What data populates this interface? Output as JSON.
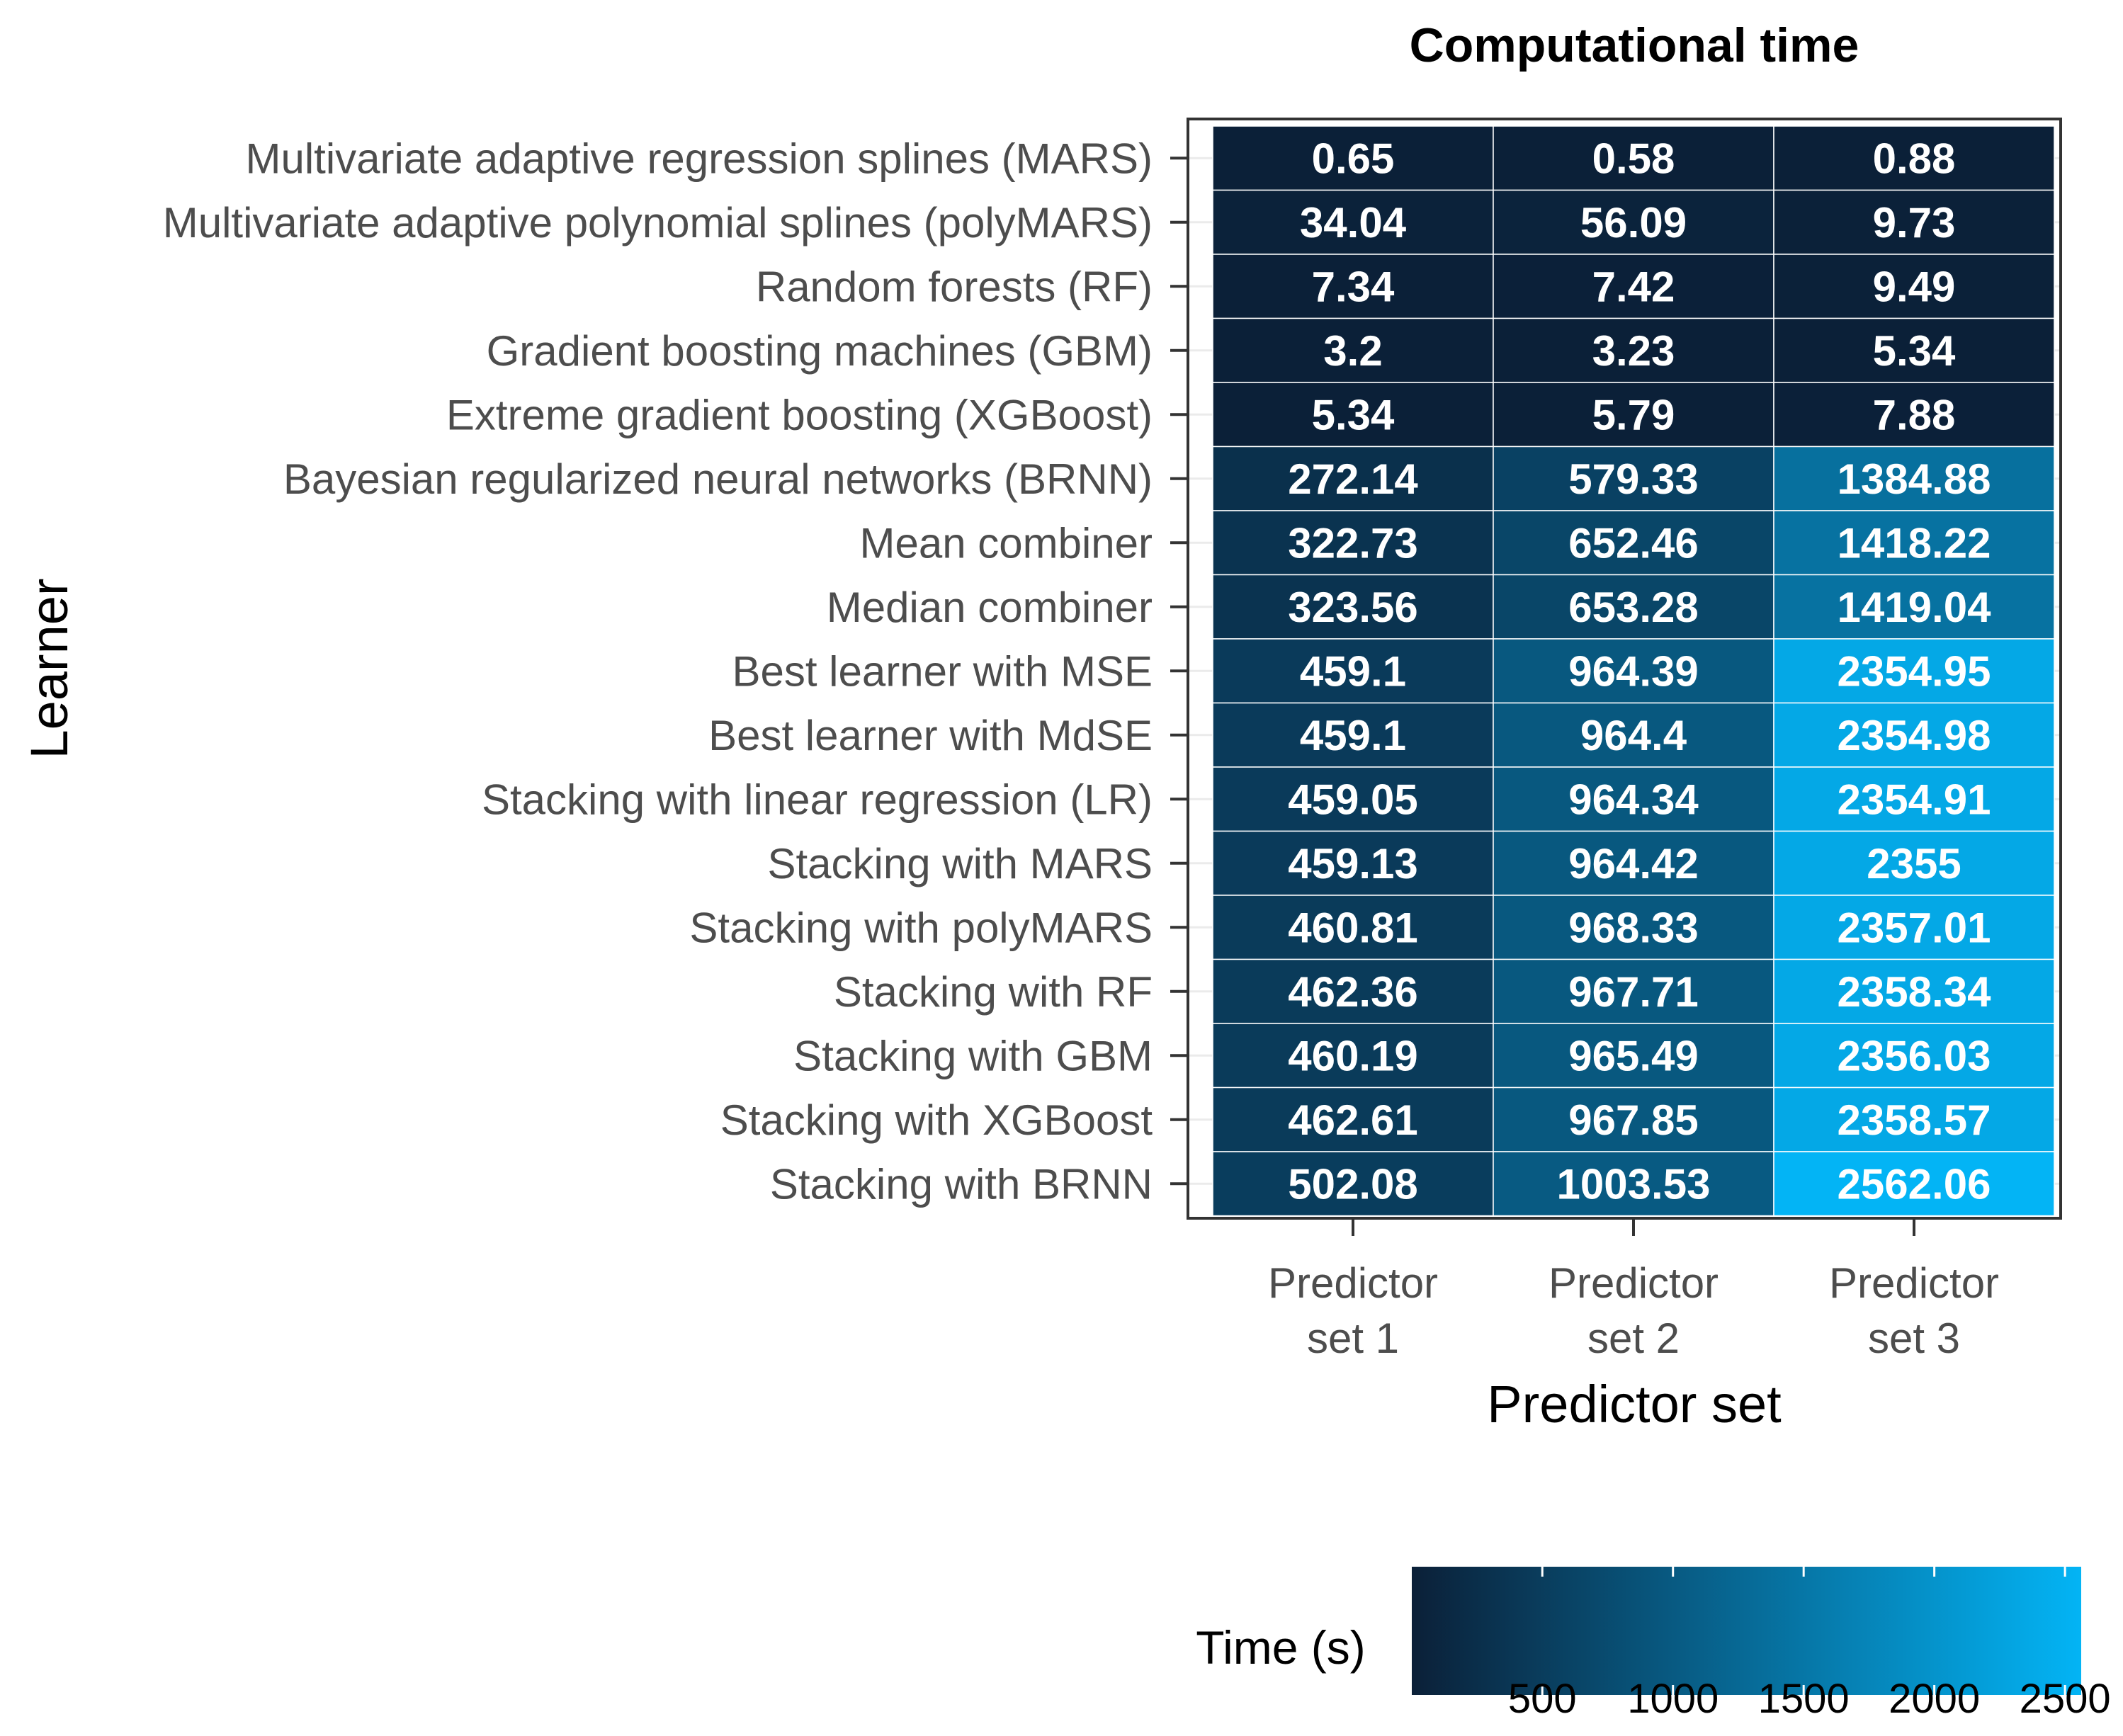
{
  "chart_data": {
    "type": "heatmap",
    "title": "Computational time",
    "xlabel": "Predictor set",
    "ylabel": "Learner",
    "x_categories": [
      [
        "Predictor",
        "set 1"
      ],
      [
        "Predictor",
        "set 2"
      ],
      [
        "Predictor",
        "set 3"
      ]
    ],
    "y_categories": [
      "Multivariate adaptive regression splines (MARS)",
      "Multivariate adaptive polynomial splines (polyMARS)",
      "Random forests (RF)",
      "Gradient boosting machines (GBM)",
      "Extreme gradient boosting (XGBoost)",
      "Bayesian regularized neural networks (BRNN)",
      "Mean combiner",
      "Median combiner",
      "Best learner with MSE",
      "Best learner with MdSE",
      "Stacking with linear regression (LR)",
      "Stacking with MARS",
      "Stacking with polyMARS",
      "Stacking with RF",
      "Stacking with GBM",
      "Stacking with XGBoost",
      "Stacking with BRNN"
    ],
    "values": [
      [
        "0.65",
        "0.58",
        "0.88"
      ],
      [
        "34.04",
        "56.09",
        "9.73"
      ],
      [
        "7.34",
        "7.42",
        "9.49"
      ],
      [
        "3.2",
        "3.23",
        "5.34"
      ],
      [
        "5.34",
        "5.79",
        "7.88"
      ],
      [
        "272.14",
        "579.33",
        "1384.88"
      ],
      [
        "322.73",
        "652.46",
        "1418.22"
      ],
      [
        "323.56",
        "653.28",
        "1419.04"
      ],
      [
        "459.1",
        "964.39",
        "2354.95"
      ],
      [
        "459.1",
        "964.4",
        "2354.98"
      ],
      [
        "459.05",
        "964.34",
        "2354.91"
      ],
      [
        "459.13",
        "964.42",
        "2355"
      ],
      [
        "460.81",
        "968.33",
        "2357.01"
      ],
      [
        "462.36",
        "967.71",
        "2358.34"
      ],
      [
        "460.19",
        "965.49",
        "2356.03"
      ],
      [
        "462.61",
        "967.85",
        "2358.57"
      ],
      [
        "502.08",
        "1003.53",
        "2562.06"
      ]
    ],
    "legend": {
      "title": "Time (s)",
      "ticks": [
        500,
        1000,
        1500,
        2000,
        2500
      ],
      "tick_labels": [
        "500",
        "1000",
        "1500",
        "2000",
        "2500"
      ],
      "range": [
        0.58,
        2562.06
      ],
      "low_color": "#0b2038",
      "high_color": "#03b4f5",
      "position": "bottom-right"
    }
  }
}
